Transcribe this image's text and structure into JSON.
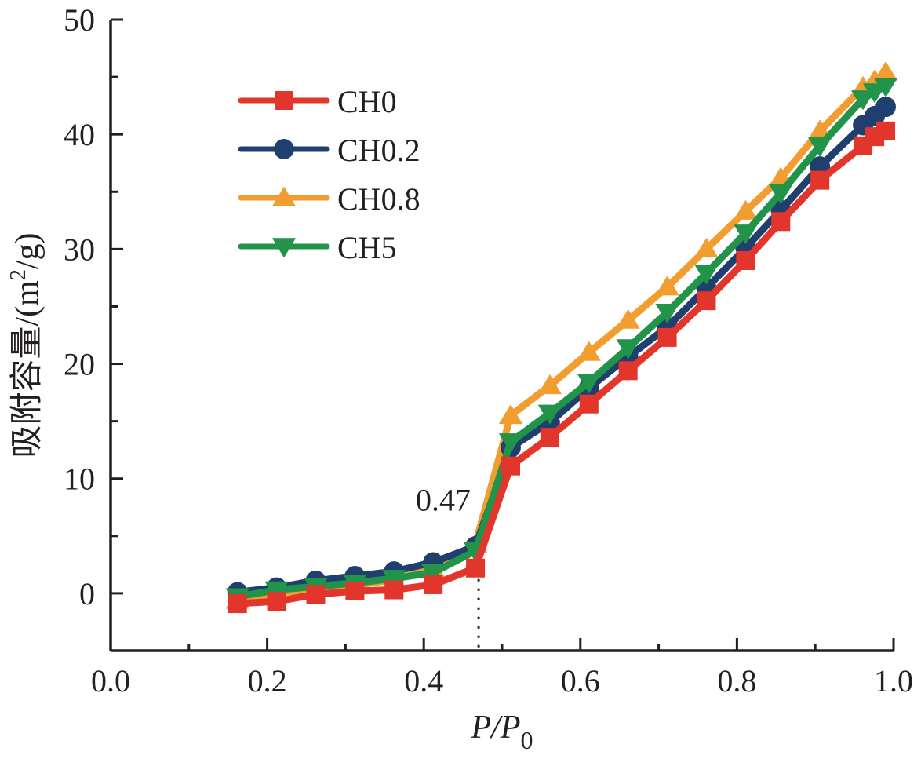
{
  "chart_data": {
    "type": "line",
    "title": "",
    "xlabel": "P/P0",
    "xlabel_main": "P/P",
    "xlabel_sub": "0",
    "ylabel": "吸附容量/(m²/g)",
    "ylabel_prefix": "吸附容量/(m",
    "ylabel_sup": "2",
    "ylabel_suffix": "/g)",
    "xlim": [
      0.0,
      1.0
    ],
    "ylim": [
      -5,
      50
    ],
    "x_ticks": [
      0.0,
      0.2,
      0.4,
      0.6,
      0.8,
      1.0
    ],
    "x_tick_labels": [
      "0.0",
      "0.2",
      "0.4",
      "0.6",
      "0.8",
      "1.0"
    ],
    "x_minor_ticks": [
      0.1,
      0.3,
      0.5,
      0.7,
      0.9
    ],
    "y_ticks": [
      0,
      10,
      20,
      30,
      40,
      50
    ],
    "y_tick_labels": [
      "0",
      "10",
      "20",
      "30",
      "40",
      "50"
    ],
    "y_minor_ticks": [
      5,
      15,
      25,
      35,
      45
    ],
    "grid": false,
    "legend_position": "top-left",
    "annotations": [
      {
        "text": "0.47",
        "x": 0.47,
        "type": "dotted-vertical-line"
      }
    ],
    "x": [
      0.162,
      0.212,
      0.262,
      0.312,
      0.362,
      0.412,
      0.466,
      0.511,
      0.561,
      0.611,
      0.661,
      0.711,
      0.761,
      0.811,
      0.856,
      0.906,
      0.961,
      0.976,
      0.99
    ],
    "series": [
      {
        "name": "CH0",
        "color": "#E2352B",
        "marker": "square",
        "values": [
          -0.9,
          -0.7,
          -0.1,
          0.2,
          0.3,
          0.75,
          2.2,
          11.1,
          13.6,
          16.5,
          19.4,
          22.3,
          25.5,
          29.0,
          32.4,
          36.0,
          39.0,
          39.8,
          40.3
        ]
      },
      {
        "name": "CH0.2",
        "color": "#1F3F6E",
        "marker": "circle",
        "values": [
          0.1,
          0.5,
          1.1,
          1.5,
          1.9,
          2.7,
          4.1,
          12.7,
          14.9,
          17.9,
          20.6,
          23.2,
          26.6,
          30.1,
          33.4,
          37.2,
          40.8,
          41.6,
          42.4
        ]
      },
      {
        "name": "CH0.8",
        "color": "#F19D30",
        "marker": "triangle-up",
        "values": [
          -0.6,
          0.0,
          0.4,
          0.7,
          1.2,
          2.1,
          4.3,
          15.5,
          18.1,
          21.0,
          23.8,
          26.7,
          30.0,
          33.3,
          36.2,
          40.3,
          44.1,
          44.7,
          45.4
        ]
      },
      {
        "name": "CH5",
        "color": "#22944A",
        "marker": "triangle-down",
        "values": [
          -0.3,
          0.3,
          0.6,
          0.9,
          1.3,
          1.8,
          3.7,
          13.2,
          15.7,
          18.4,
          21.4,
          24.5,
          27.9,
          31.4,
          34.9,
          39.0,
          43.1,
          43.7,
          44.2
        ]
      }
    ]
  }
}
